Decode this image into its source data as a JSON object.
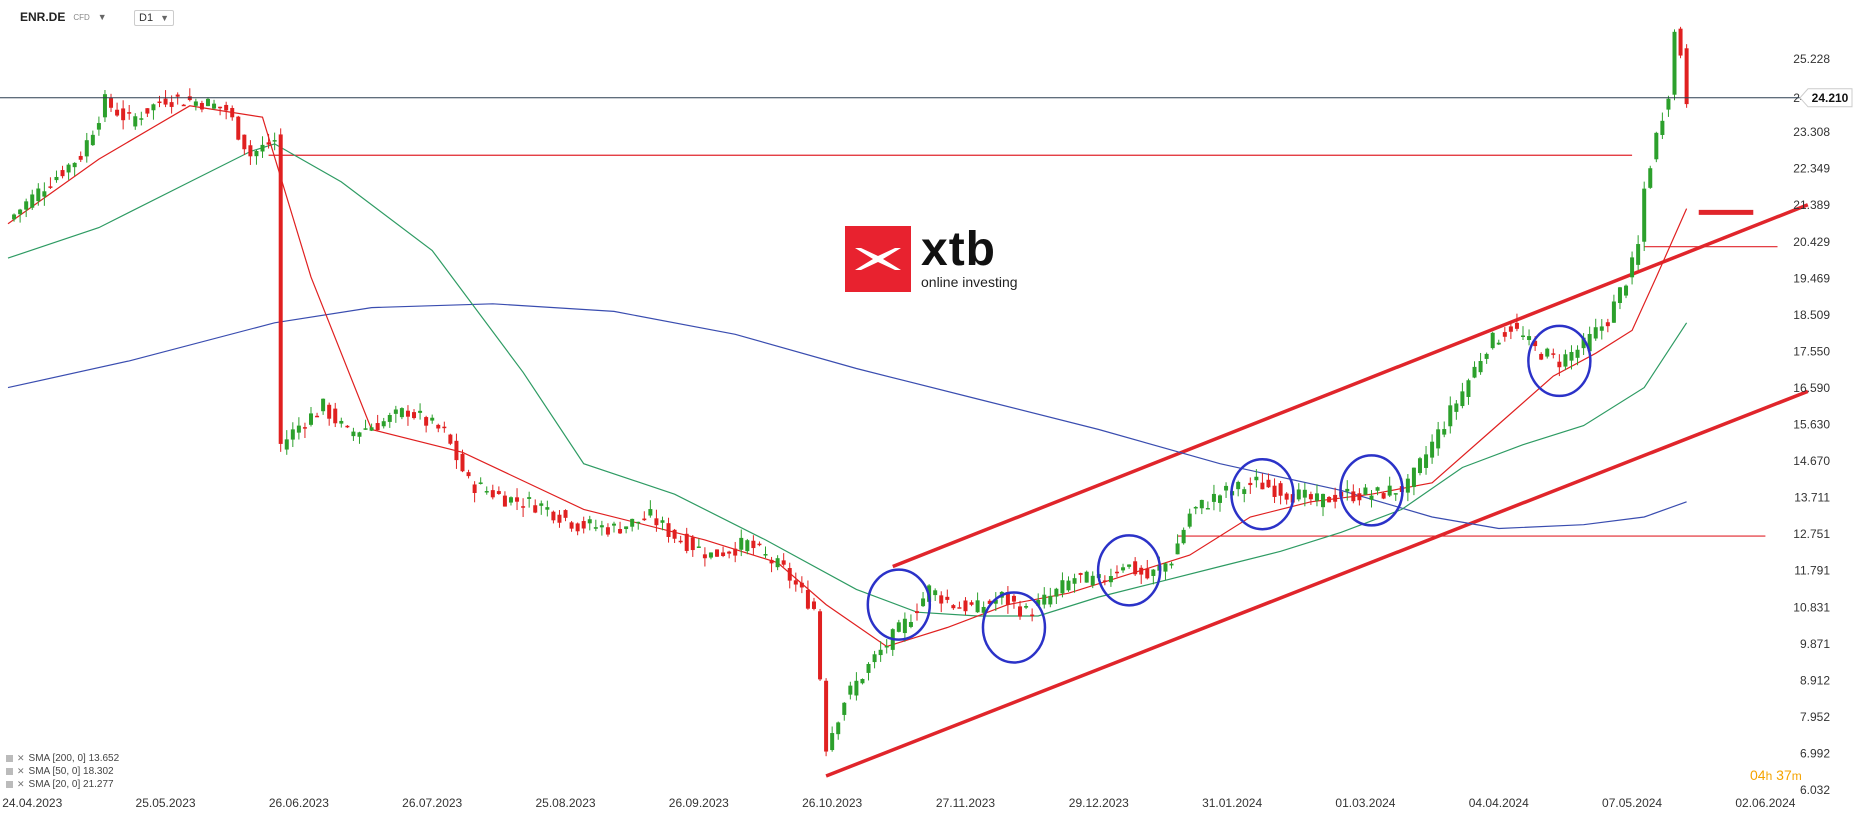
{
  "header": {
    "symbol": "ENR.DE",
    "instrument_type": "CFD",
    "timeframe": "D1"
  },
  "logo": {
    "brand": "xtb",
    "tagline": "online investing"
  },
  "timer": {
    "hours": "04",
    "h_unit": "h",
    "minutes": "37",
    "m_unit": "m"
  },
  "indicators": [
    {
      "label": "SMA [200,  0] 13.652"
    },
    {
      "label": "SMA [50,  0] 18.302"
    },
    {
      "label": "SMA [20,  0] 21.277"
    }
  ],
  "colors": {
    "up": "#2ca02c",
    "down": "#e02020",
    "sma20": "#e02020",
    "sma50": "#2e9b63",
    "sma200": "#3a4db0",
    "channel": "#e0252b",
    "circle": "#2b32c8",
    "price_line": "#2c3e50",
    "grid_text": "#333333"
  },
  "chart_data": {
    "type": "candlestick",
    "ylim": [
      6.032,
      26.2
    ],
    "y_ticks": [
      25.228,
      24.21,
      23.308,
      22.349,
      21.389,
      20.429,
      19.469,
      18.509,
      17.55,
      16.59,
      15.63,
      14.67,
      13.711,
      12.751,
      11.791,
      10.831,
      9.871,
      8.912,
      7.952,
      6.992,
      6.032
    ],
    "current_price": "24.210",
    "x_ticks": [
      {
        "label": "24.04.2023",
        "i": 4
      },
      {
        "label": "25.05.2023",
        "i": 26
      },
      {
        "label": "26.06.2023",
        "i": 48
      },
      {
        "label": "26.07.2023",
        "i": 70
      },
      {
        "label": "25.08.2023",
        "i": 92
      },
      {
        "label": "26.09.2023",
        "i": 114
      },
      {
        "label": "26.10.2023",
        "i": 136
      },
      {
        "label": "27.11.2023",
        "i": 158
      },
      {
        "label": "29.12.2023",
        "i": 180
      },
      {
        "label": "31.01.2024",
        "i": 202
      },
      {
        "label": "01.03.2024",
        "i": 224
      },
      {
        "label": "04.04.2024",
        "i": 246
      },
      {
        "label": "07.05.2024",
        "i": 268
      },
      {
        "label": "02.06.2024",
        "i": 290
      }
    ],
    "anchors": [
      [
        0,
        21.0
      ],
      [
        6,
        21.9
      ],
      [
        12,
        22.7
      ],
      [
        16,
        24.1
      ],
      [
        20,
        23.6
      ],
      [
        26,
        24.2
      ],
      [
        32,
        24.1
      ],
      [
        36,
        23.9
      ],
      [
        40,
        22.7
      ],
      [
        44,
        23.1
      ],
      [
        45,
        15.1
      ],
      [
        48,
        15.6
      ],
      [
        52,
        16.1
      ],
      [
        56,
        15.4
      ],
      [
        62,
        15.7
      ],
      [
        66,
        16.0
      ],
      [
        72,
        15.4
      ],
      [
        76,
        14.1
      ],
      [
        82,
        13.7
      ],
      [
        88,
        13.5
      ],
      [
        94,
        13.0
      ],
      [
        100,
        12.9
      ],
      [
        106,
        13.2
      ],
      [
        110,
        12.7
      ],
      [
        116,
        12.2
      ],
      [
        122,
        12.5
      ],
      [
        128,
        11.8
      ],
      [
        133,
        10.8
      ],
      [
        135,
        7.2
      ],
      [
        138,
        8.4
      ],
      [
        143,
        9.5
      ],
      [
        148,
        10.4
      ],
      [
        152,
        11.3
      ],
      [
        156,
        10.9
      ],
      [
        160,
        10.8
      ],
      [
        164,
        11.1
      ],
      [
        168,
        10.7
      ],
      [
        172,
        11.1
      ],
      [
        176,
        11.6
      ],
      [
        180,
        11.5
      ],
      [
        184,
        12.0
      ],
      [
        188,
        11.6
      ],
      [
        192,
        12.1
      ],
      [
        195,
        13.3
      ],
      [
        200,
        13.8
      ],
      [
        206,
        14.1
      ],
      [
        212,
        13.8
      ],
      [
        216,
        13.6
      ],
      [
        220,
        13.8
      ],
      [
        226,
        13.8
      ],
      [
        231,
        14.0
      ],
      [
        236,
        15.4
      ],
      [
        240,
        16.5
      ],
      [
        244,
        17.7
      ],
      [
        248,
        18.2
      ],
      [
        252,
        17.6
      ],
      [
        256,
        17.3
      ],
      [
        260,
        17.7
      ],
      [
        264,
        18.4
      ],
      [
        268,
        19.8
      ],
      [
        269,
        20.3
      ],
      [
        270,
        21.8
      ],
      [
        272,
        23.2
      ],
      [
        274,
        24.4
      ],
      [
        275,
        25.9
      ],
      [
        276,
        25.4
      ],
      [
        277,
        24.2
      ]
    ],
    "sma20": [
      [
        0,
        20.9
      ],
      [
        15,
        22.6
      ],
      [
        30,
        24.0
      ],
      [
        42,
        23.7
      ],
      [
        50,
        19.5
      ],
      [
        60,
        15.5
      ],
      [
        75,
        14.9
      ],
      [
        95,
        13.4
      ],
      [
        115,
        12.6
      ],
      [
        127,
        12.0
      ],
      [
        135,
        10.9
      ],
      [
        145,
        9.8
      ],
      [
        155,
        10.3
      ],
      [
        165,
        10.9
      ],
      [
        175,
        11.2
      ],
      [
        185,
        11.7
      ],
      [
        195,
        12.2
      ],
      [
        205,
        13.2
      ],
      [
        215,
        13.6
      ],
      [
        225,
        13.8
      ],
      [
        235,
        14.1
      ],
      [
        245,
        15.5
      ],
      [
        255,
        16.9
      ],
      [
        262,
        17.5
      ],
      [
        268,
        18.1
      ],
      [
        272,
        19.5
      ],
      [
        277,
        21.3
      ]
    ],
    "sma50": [
      [
        0,
        20.0
      ],
      [
        15,
        20.8
      ],
      [
        30,
        22.0
      ],
      [
        40,
        22.8
      ],
      [
        44,
        23.0
      ],
      [
        55,
        22.0
      ],
      [
        70,
        20.2
      ],
      [
        85,
        17.0
      ],
      [
        95,
        14.6
      ],
      [
        110,
        13.8
      ],
      [
        125,
        12.6
      ],
      [
        140,
        11.3
      ],
      [
        150,
        10.7
      ],
      [
        160,
        10.6
      ],
      [
        170,
        10.6
      ],
      [
        180,
        11.1
      ],
      [
        190,
        11.5
      ],
      [
        200,
        11.9
      ],
      [
        210,
        12.3
      ],
      [
        220,
        12.8
      ],
      [
        230,
        13.4
      ],
      [
        240,
        14.5
      ],
      [
        250,
        15.1
      ],
      [
        260,
        15.6
      ],
      [
        270,
        16.6
      ],
      [
        277,
        18.3
      ]
    ],
    "sma200": [
      [
        0,
        16.6
      ],
      [
        20,
        17.3
      ],
      [
        44,
        18.3
      ],
      [
        60,
        18.7
      ],
      [
        80,
        18.8
      ],
      [
        100,
        18.6
      ],
      [
        120,
        18.0
      ],
      [
        140,
        17.1
      ],
      [
        160,
        16.3
      ],
      [
        180,
        15.5
      ],
      [
        200,
        14.6
      ],
      [
        220,
        13.9
      ],
      [
        235,
        13.2
      ],
      [
        246,
        12.9
      ],
      [
        260,
        13.0
      ],
      [
        270,
        13.2
      ],
      [
        277,
        13.6
      ]
    ],
    "annotations": {
      "resistance_line": {
        "y": 22.7,
        "from_i": 43,
        "to_i": 268
      },
      "support_line": {
        "y": 12.7,
        "from_i": 193,
        "to_i": 290
      },
      "level_line": {
        "y": 20.3,
        "from_i": 270,
        "to_i": 292
      },
      "target_marker": {
        "y": 21.2,
        "from_i": 279,
        "to_i": 288
      },
      "channel_upper": {
        "from": [
          146,
          11.9
        ],
        "to": [
          297,
          21.4
        ]
      },
      "channel_lower": {
        "from": [
          135,
          6.4
        ],
        "to": [
          297,
          16.5
        ]
      },
      "circles": [
        [
          147,
          10.9
        ],
        [
          166,
          10.3
        ],
        [
          185,
          11.8
        ],
        [
          207,
          13.8
        ],
        [
          225,
          13.9
        ],
        [
          256,
          17.3
        ]
      ]
    }
  }
}
